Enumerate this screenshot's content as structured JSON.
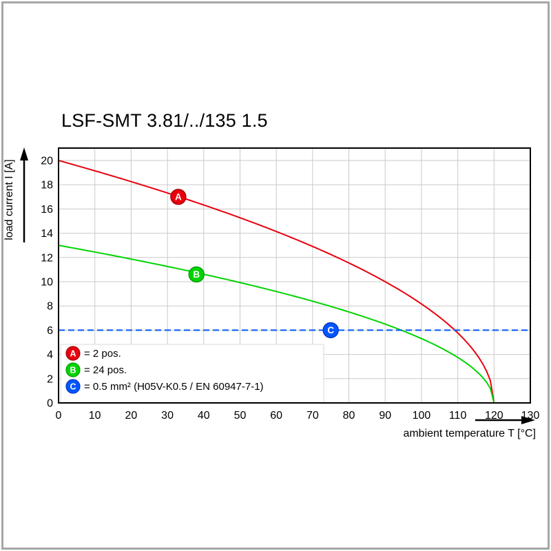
{
  "frame": {
    "border_color": "#a6a6a6",
    "background": "#ffffff"
  },
  "chart_data": {
    "type": "line",
    "title": "LSF-SMT 3.81/../135 1.5",
    "xlabel": "ambient temperature T [°C]",
    "ylabel": "load current I [A]",
    "xlim": [
      0,
      130
    ],
    "ylim": [
      0,
      21
    ],
    "x_ticks": [
      0,
      10,
      20,
      30,
      40,
      50,
      60,
      70,
      80,
      90,
      100,
      110,
      120,
      130
    ],
    "y_ticks": [
      0,
      2,
      4,
      6,
      8,
      10,
      12,
      14,
      16,
      18,
      20
    ],
    "grid": true,
    "grid_color": "#c9c9c9",
    "legend_position": "lower-left",
    "series": [
      {
        "id": "A",
        "label": "= 2 pos.",
        "color": "#e8000d",
        "marker_stroke": "#a50008",
        "style": "solid-curve",
        "model": {
          "type": "sqrt_derating",
          "i0": 20,
          "t_max": 120
        },
        "x": [
          0,
          10,
          20,
          30,
          40,
          50,
          60,
          70,
          80,
          90,
          100,
          110,
          120
        ],
        "values": [
          20,
          19.1,
          18.3,
          17.3,
          16.3,
          15.3,
          14.1,
          12.9,
          11.5,
          10.0,
          8.2,
          5.8,
          0
        ],
        "marker_at": {
          "t": 33,
          "i": 17
        }
      },
      {
        "id": "B",
        "label": "= 24 pos.",
        "color": "#00d400",
        "marker_stroke": "#009c00",
        "style": "solid-curve",
        "model": {
          "type": "sqrt_derating",
          "i0": 13,
          "t_max": 120
        },
        "x": [
          0,
          10,
          20,
          30,
          40,
          50,
          60,
          70,
          80,
          90,
          100,
          110,
          120
        ],
        "values": [
          13,
          12.4,
          11.9,
          11.3,
          10.6,
          9.9,
          9.2,
          8.4,
          7.5,
          6.5,
          5.3,
          3.8,
          0
        ],
        "marker_at": {
          "t": 38,
          "i": 10.6
        }
      },
      {
        "id": "C",
        "label": "= 0.5 mm² (H05V-K0.5 / EN 60947-7-1)",
        "color": "#0055ff",
        "marker_stroke": "#0038c2",
        "style": "dashed-horizontal",
        "value": 6,
        "x": [
          0,
          130
        ],
        "values": [
          6,
          6
        ],
        "marker_at": {
          "t": 75,
          "i": 6
        }
      }
    ]
  }
}
